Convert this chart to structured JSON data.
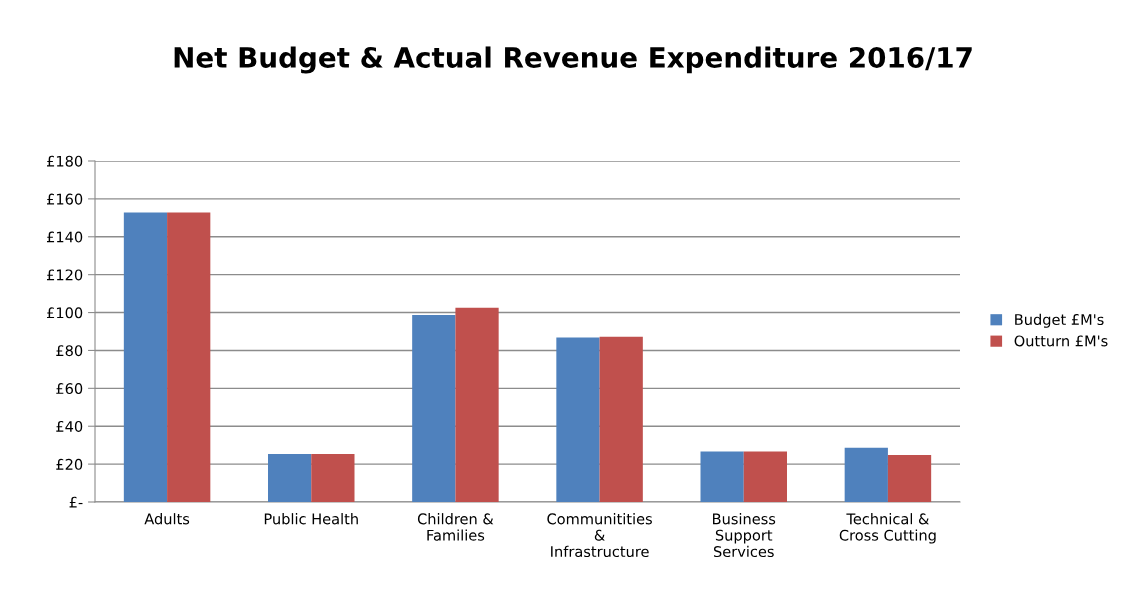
{
  "chart_data": {
    "type": "bar",
    "title": "Net Budget & Actual Revenue Expenditure 2016/17",
    "categories": [
      "Adults",
      "Public Health",
      "Children &\nFamilies",
      "Communitities\n&\nInfrastructure",
      "Business\nSupport\nServices",
      "Technical &\nCross Cutting"
    ],
    "series": [
      {
        "name": "Budget £M's",
        "color": "#4f81bd",
        "values": [
          152.8,
          25.3,
          98.7,
          86.8,
          26.7,
          28.7
        ]
      },
      {
        "name": "Outturn £M's",
        "color": "#c0504d",
        "values": [
          152.8,
          25.3,
          102.6,
          87.2,
          26.7,
          24.8
        ]
      }
    ],
    "ylim": [
      0,
      180
    ],
    "yticks": [
      {
        "value": 0,
        "label": "£-"
      },
      {
        "value": 20,
        "label": "£20"
      },
      {
        "value": 40,
        "label": "£40"
      },
      {
        "value": 60,
        "label": "£60"
      },
      {
        "value": 80,
        "label": "£80"
      },
      {
        "value": 100,
        "label": "£100"
      },
      {
        "value": 120,
        "label": "£120"
      },
      {
        "value": 140,
        "label": "£140"
      },
      {
        "value": 160,
        "label": "£160"
      },
      {
        "value": 180,
        "label": "£180"
      }
    ],
    "grid": "y",
    "legend": "right"
  }
}
